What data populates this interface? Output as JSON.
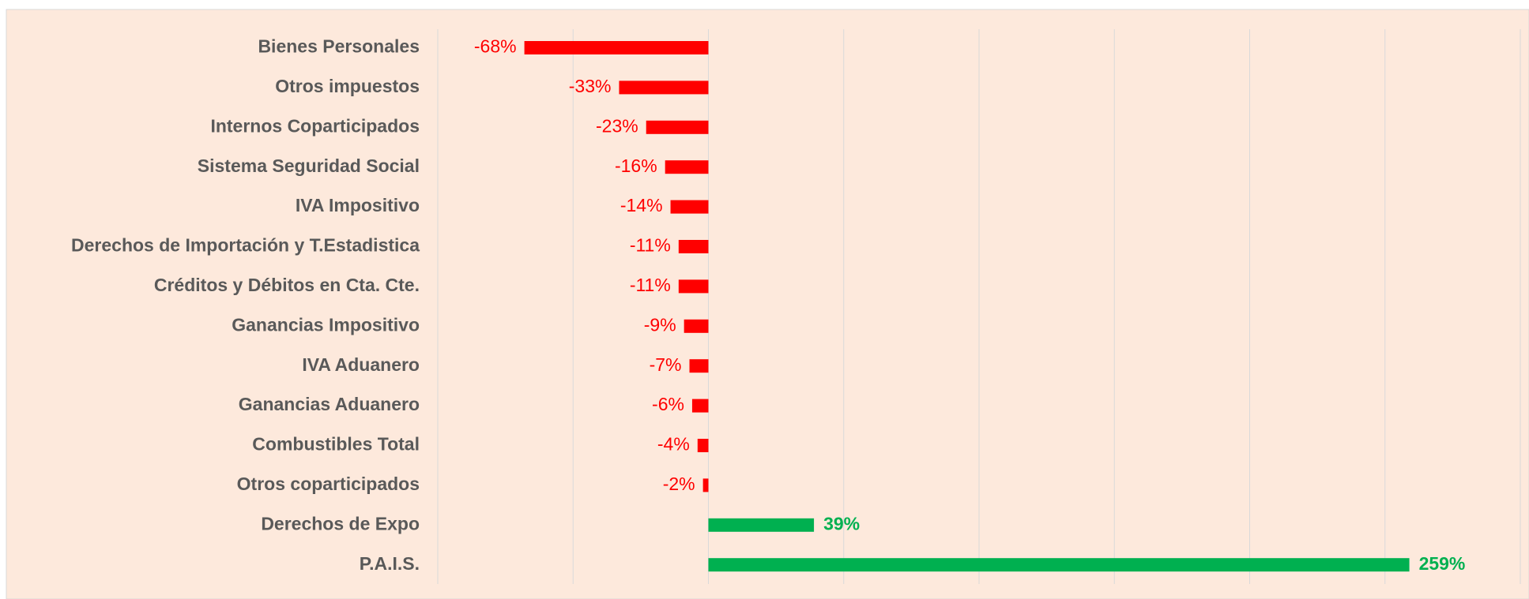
{
  "chart_data": {
    "type": "bar",
    "orientation": "horizontal",
    "categories": [
      "Bienes Personales",
      "Otros impuestos",
      "Internos Coparticipados",
      "Sistema Seguridad Social",
      "IVA Impositivo",
      "Derechos de Importación y T.Estadistica",
      "Créditos y Débitos en Cta. Cte.",
      "Ganancias Impositivo",
      "IVA Aduanero",
      "Ganancias Aduanero",
      "Combustibles Total",
      "Otros coparticipados",
      "Derechos de Expo",
      "P.A.I.S."
    ],
    "values": [
      -68,
      -33,
      -23,
      -16,
      -14,
      -11,
      -11,
      -9,
      -7,
      -6,
      -4,
      -2,
      39,
      259
    ],
    "value_labels": [
      "-68%",
      "-33%",
      "-23%",
      "-16%",
      "-14%",
      "-11%",
      "-11%",
      "-9%",
      "-7%",
      "-6%",
      "-4%",
      "-2%",
      "39%",
      "259%"
    ],
    "color": "#00b050",
    "negative_color": "#ff0000",
    "xlim": [
      -100,
      300
    ],
    "xticks": [
      -100,
      -50,
      0,
      50,
      100,
      150,
      200,
      250,
      300
    ],
    "grid": true
  }
}
